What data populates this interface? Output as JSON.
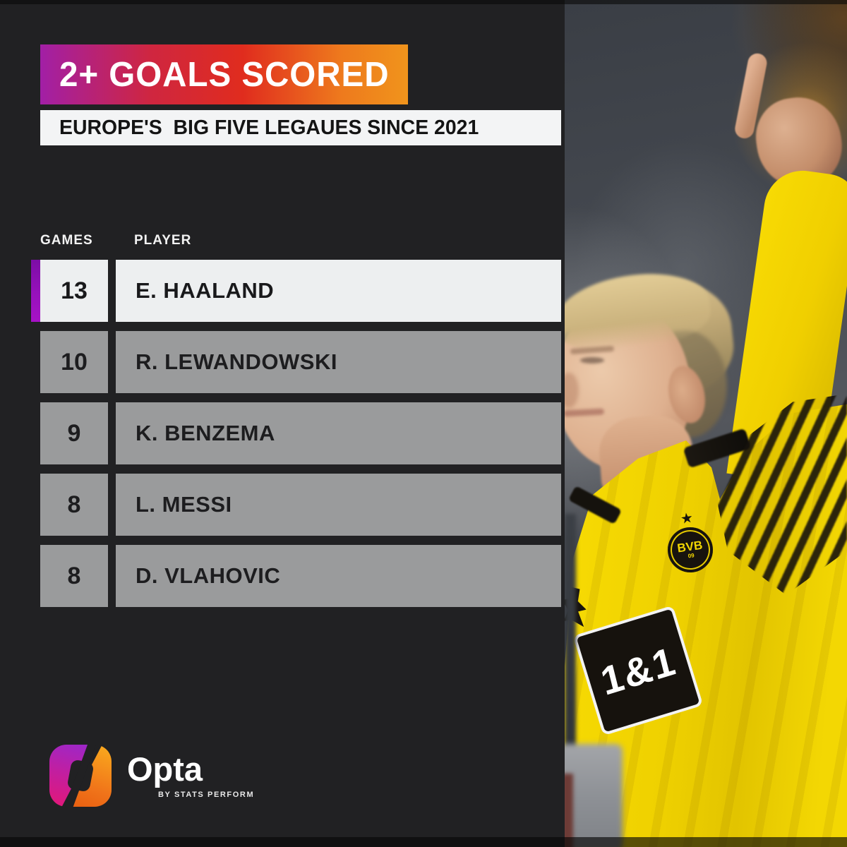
{
  "title": {
    "text": "2+ GOALS SCORED"
  },
  "subtitle": {
    "text": "EUROPE'S  BIG FIVE LEGAUES SINCE 2021"
  },
  "table": {
    "headers": {
      "games": "GAMES",
      "player": "PLAYER"
    },
    "rows": [
      {
        "games": "13",
        "player": "E. HAALAND",
        "highlighted": true
      },
      {
        "games": "10",
        "player": "R. LEWANDOWSKI",
        "highlighted": false
      },
      {
        "games": "9",
        "player": "K. BENZEMA",
        "highlighted": false
      },
      {
        "games": "8",
        "player": "L. MESSI",
        "highlighted": false
      },
      {
        "games": "8",
        "player": "D. VLAHOVIC",
        "highlighted": false
      }
    ]
  },
  "footer": {
    "brand": "Opta",
    "sub_brand": "BY STATS PERFORM",
    "badge_icon": "opta-rounded-o-logo"
  },
  "photo": {
    "description_icon": "haaland-pointing-up-photo",
    "sponsor_patch": "1&1",
    "crest": {
      "name": "BVB",
      "number": "09",
      "star_icon": "★"
    }
  },
  "colors": {
    "background": "#212123",
    "banner_gradient": [
      "#a21fa6",
      "#e02c1e",
      "#f0941c"
    ],
    "subtitle_bg": "#f3f4f5",
    "highlight_bar": "#9711bb",
    "row_highlight_bg": "#edeff0",
    "row_bg": "#9a9b9c",
    "jersey_yellow": "#f2d602",
    "patch_bg": "#16120d"
  },
  "chart_data": {
    "type": "table",
    "title": "2+ GOALS SCORED",
    "subtitle": "EUROPE'S BIG FIVE LEGAUES SINCE 2021",
    "columns": [
      "GAMES",
      "PLAYER"
    ],
    "rows": [
      [
        13,
        "E. HAALAND"
      ],
      [
        10,
        "R. LEWANDOWSKI"
      ],
      [
        9,
        "K. BENZEMA"
      ],
      [
        8,
        "L. MESSI"
      ],
      [
        8,
        "D. VLAHOVIC"
      ]
    ],
    "highlighted_row": 0,
    "sorted_by": "GAMES desc"
  }
}
